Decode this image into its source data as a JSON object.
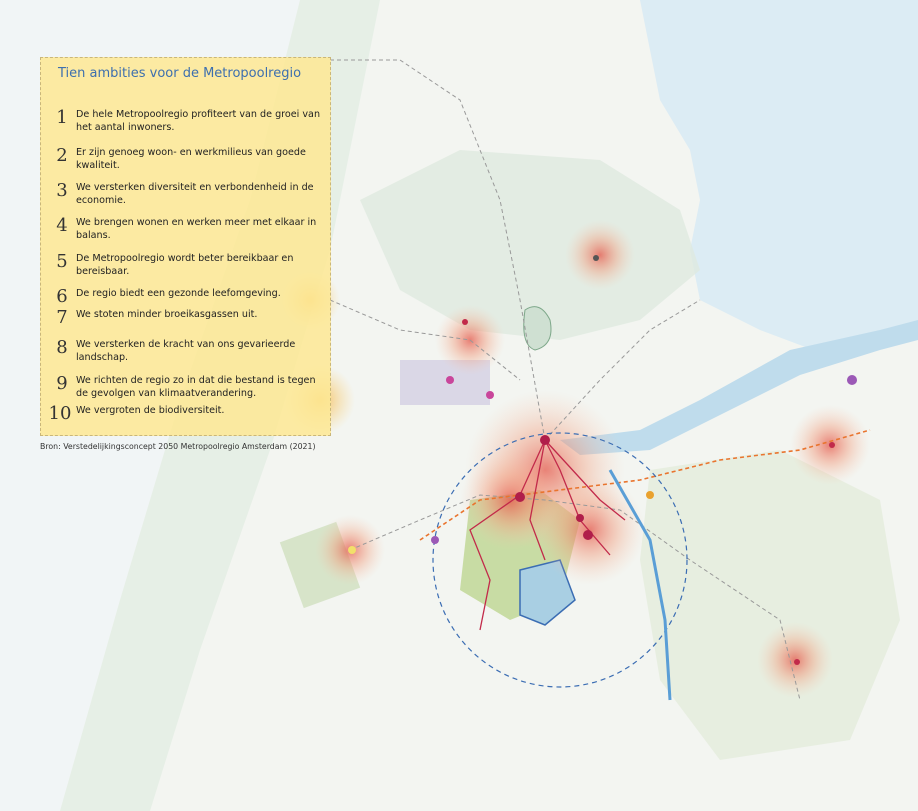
{
  "panel": {
    "title": "Tien ambities voor de Metropoolregio",
    "items": [
      {
        "num": "1",
        "text": "De hele Metropoolregio profiteert van de groei van het aantal inwoners."
      },
      {
        "num": "2",
        "text": "Er zijn genoeg woon- en werkmilieus van goede kwaliteit."
      },
      {
        "num": "3",
        "text": "We versterken diversiteit en verbondenheid in de economie."
      },
      {
        "num": "4",
        "text": "We brengen wonen en werken meer met elkaar in balans."
      },
      {
        "num": "5",
        "text": "De Metropoolregio wordt beter bereikbaar en bereisbaar."
      },
      {
        "num": "6",
        "text": "De regio biedt een gezonde leefomgeving."
      },
      {
        "num": "7",
        "text": "We stoten minder broeikasgassen uit."
      },
      {
        "num": "8",
        "text": "We versterken de kracht van ons gevarieerde landschap."
      },
      {
        "num": "9",
        "text": "We richten de regio zo in dat die bestand is tegen de gevolgen van klimaatverandering."
      },
      {
        "num": "10",
        "text": "We vergroten de biodiversiteit."
      }
    ]
  },
  "source": "Bron: Verstedelijkingsconcept 2050 Metropoolregio Amsterdam (2021)",
  "colors": {
    "panel_bg": "#fde896",
    "title": "#3d6fae",
    "water": "#d6e9f3",
    "urban_glow": "#e8705a",
    "green": "#9cc26a",
    "ring": "#3b6db3"
  }
}
